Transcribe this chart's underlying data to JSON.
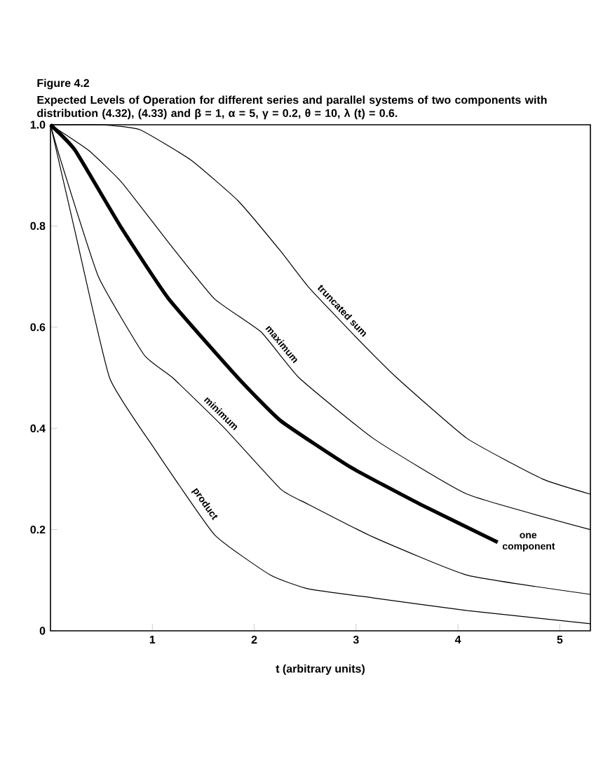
{
  "chart_data": {
    "type": "line",
    "title": "Figure 4.2",
    "subtitle": "Expected Levels of Operation for different series and parallel systems of two components with distribution (4.32), (4.33) and β = 1, α = 5, γ = 0.2, θ = 10, λ (t) = 0.6.",
    "xlabel": "t (arbitrary units)",
    "xlim": [
      0,
      5.3
    ],
    "ylim": [
      0,
      1
    ],
    "xticks": [
      1,
      2,
      3,
      4,
      5
    ],
    "yticks": [
      {
        "value": 0,
        "label": "0"
      },
      0.2,
      0.4,
      0.6,
      0.8,
      {
        "value": 1,
        "label": "1.0"
      }
    ],
    "grid": false,
    "legend": false,
    "marker": "none",
    "line_style": "solid",
    "series": [
      {
        "name": "product",
        "color": "#000000",
        "x": [
          0,
          0.24,
          0.58,
          1.02,
          1.61,
          2.16,
          2.53,
          3.17,
          4.09,
          5.3
        ],
        "values": [
          1,
          0.79,
          0.5,
          0.36,
          0.19,
          0.11,
          0.083,
          0.065,
          0.04,
          0.014
        ]
      },
      {
        "name": "minimum",
        "color": "#000000",
        "x": [
          0,
          0.1,
          0.47,
          0.92,
          1.2,
          1.71,
          2.26,
          2.53,
          3.17,
          4.09,
          5.3
        ],
        "values": [
          1,
          0.93,
          0.7,
          0.545,
          0.5,
          0.4,
          0.28,
          0.25,
          0.185,
          0.11,
          0.072
        ]
      },
      {
        "name": "one component",
        "color": "#000000",
        "x": [
          0,
          0.24,
          0.7,
          1.16,
          1.84,
          2.26,
          2.94,
          3.63,
          4.39
        ],
        "values": [
          1,
          0.95,
          0.795,
          0.656,
          0.5,
          0.415,
          0.324,
          0.25,
          0.175
        ]
      },
      {
        "name": "maximum",
        "color": "#000000",
        "x": [
          0,
          0.37,
          0.7,
          1.16,
          1.61,
          2.07,
          2.44,
          3.17,
          4.09,
          5.3
        ],
        "values": [
          1,
          0.95,
          0.886,
          0.767,
          0.656,
          0.59,
          0.5,
          0.38,
          0.27,
          0.2
        ]
      },
      {
        "name": "truncated sum",
        "color": "#000000",
        "x": [
          0,
          0.5,
          0.88,
          1.38,
          1.84,
          2.26,
          2.53,
          3.0,
          3.4,
          4.09,
          4.83,
          5.3
        ],
        "values": [
          1,
          1,
          0.99,
          0.93,
          0.85,
          0.75,
          0.68,
          0.58,
          0.5,
          0.38,
          0.3,
          0.27
        ]
      }
    ]
  }
}
